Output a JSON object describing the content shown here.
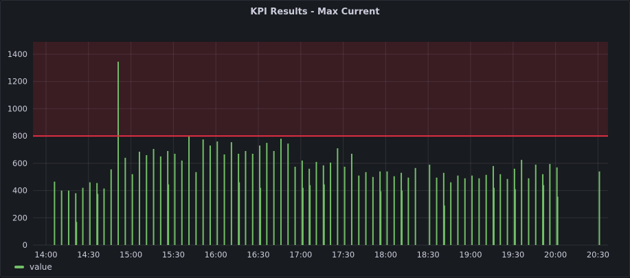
{
  "panel": {
    "title": "KPI Results - Max Current"
  },
  "chart_data": {
    "type": "bar",
    "title": "KPI Results - Max Current",
    "xlabel": "",
    "ylabel": "",
    "ylim": [
      0,
      1400
    ],
    "y_ticks": [
      "0",
      "200",
      "400",
      "600",
      "800",
      "1000",
      "1200",
      "1400"
    ],
    "x_ticks": [
      "14:00",
      "14:30",
      "15:00",
      "15:30",
      "16:00",
      "16:30",
      "17:00",
      "17:30",
      "18:00",
      "18:30",
      "19:00",
      "19:30",
      "20:00",
      "20:30"
    ],
    "grid": true,
    "legend": "bottom-left",
    "threshold": {
      "value": 800,
      "color": "#e02f44",
      "fill": "#3a1c23"
    },
    "colors": {
      "series": "#73bf69"
    },
    "x": [
      "14:06",
      "14:11",
      "14:16",
      "14:21",
      "14:26",
      "14:31",
      "14:36",
      "14:41",
      "14:46",
      "14:51",
      "14:56",
      "15:01",
      "15:06",
      "15:11",
      "15:16",
      "15:21",
      "15:26",
      "15:31",
      "15:36",
      "15:41",
      "15:46",
      "15:51",
      "15:56",
      "16:01",
      "16:06",
      "16:11",
      "16:16",
      "16:21",
      "16:26",
      "16:31",
      "16:36",
      "16:41",
      "16:46",
      "16:51",
      "16:56",
      "17:01",
      "17:06",
      "17:11",
      "17:16",
      "17:21",
      "17:26",
      "17:31",
      "17:36",
      "17:41",
      "17:46",
      "17:51",
      "17:56",
      "18:01",
      "18:06",
      "18:11",
      "18:16",
      "18:21",
      "18:31",
      "18:36",
      "18:41",
      "18:46",
      "18:51",
      "18:56",
      "19:01",
      "19:06",
      "19:11",
      "19:16",
      "19:21",
      "19:26",
      "19:31",
      "19:36",
      "19:41",
      "19:46",
      "19:51",
      "19:56",
      "20:01",
      "20:31"
    ],
    "series": [
      {
        "name": "value",
        "values": [
          465,
          400,
          400,
          380,
          420,
          460,
          455,
          415,
          555,
          1345,
          640,
          520,
          685,
          660,
          705,
          650,
          690,
          670,
          620,
          800,
          535,
          775,
          730,
          760,
          665,
          755,
          670,
          690,
          670,
          730,
          750,
          690,
          780,
          745,
          575,
          620,
          560,
          610,
          585,
          605,
          710,
          575,
          670,
          510,
          535,
          500,
          540,
          540,
          505,
          530,
          495,
          565,
          590,
          495,
          530,
          460,
          510,
          490,
          510,
          490,
          515,
          580,
          520,
          485,
          560,
          625,
          490,
          590,
          520,
          595,
          570,
          540
        ]
      },
      {
        "values": [
          null,
          null,
          null,
          170,
          null,
          null,
          375,
          null,
          null,
          null,
          null,
          null,
          null,
          null,
          null,
          null,
          445,
          null,
          null,
          null,
          null,
          null,
          null,
          null,
          null,
          null,
          460,
          null,
          null,
          420,
          null,
          null,
          null,
          null,
          null,
          420,
          440,
          null,
          445,
          null,
          null,
          null,
          null,
          null,
          null,
          null,
          395,
          null,
          null,
          400,
          null,
          null,
          null,
          null,
          290,
          null,
          null,
          null,
          null,
          null,
          null,
          420,
          null,
          null,
          410,
          null,
          null,
          null,
          440,
          null,
          355,
          null
        ]
      }
    ]
  },
  "legend": {
    "items": [
      {
        "label": "value",
        "color": "#73bf69"
      }
    ]
  }
}
